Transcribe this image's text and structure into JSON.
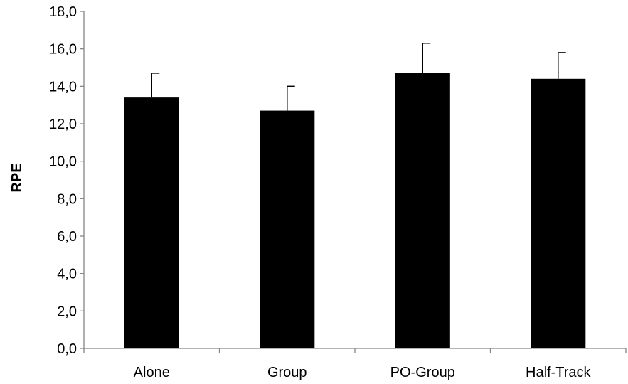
{
  "chart_data": {
    "type": "bar",
    "title": "",
    "xlabel": "",
    "ylabel": "RPE",
    "categories": [
      "Alone",
      "Group",
      "PO-Group",
      "Half-Track"
    ],
    "values": [
      13.4,
      12.7,
      14.7,
      14.4
    ],
    "error_upper": [
      1.3,
      1.3,
      1.6,
      1.4
    ],
    "ylim": [
      0,
      18
    ],
    "y_ticks": [
      "0,0",
      "2,0",
      "4,0",
      "6,0",
      "8,0",
      "10,0",
      "12,0",
      "14,0",
      "16,0",
      "18,0"
    ],
    "y_tick_values": [
      0,
      2,
      4,
      6,
      8,
      10,
      12,
      14,
      16,
      18
    ],
    "grid": false,
    "legend": "none",
    "bar_color": "#000000",
    "axis_color": "#868686"
  }
}
